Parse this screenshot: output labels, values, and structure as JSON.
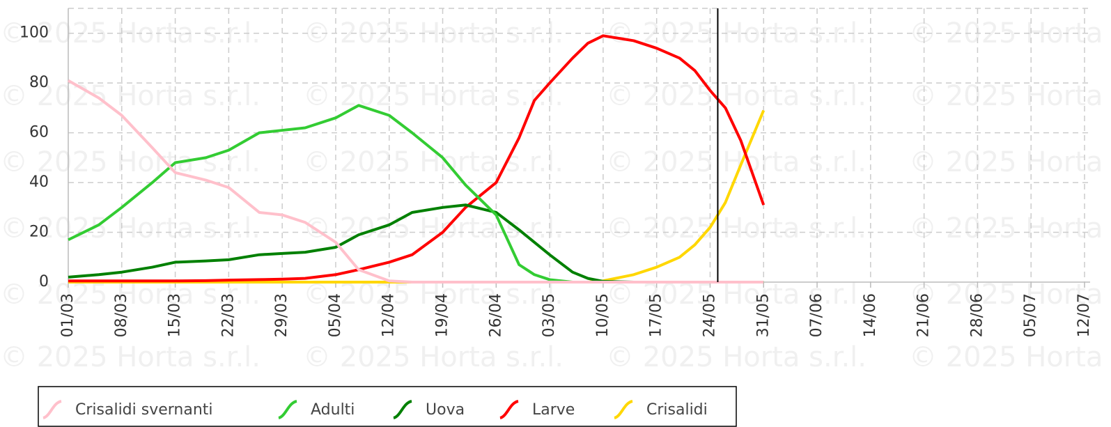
{
  "chart_data": {
    "type": "line",
    "watermark": "© 2025 Horta s.r.l.",
    "x": [
      "01/03",
      "05/03",
      "08/03",
      "12/03",
      "15/03",
      "19/03",
      "22/03",
      "26/03",
      "29/03",
      "01/04",
      "05/04",
      "08/04",
      "12/04",
      "15/04",
      "19/04",
      "22/04",
      "26/04",
      "29/04",
      "01/05",
      "03/05",
      "06/05",
      "08/05",
      "10/05",
      "14/05",
      "17/05",
      "20/05",
      "22/05",
      "24/05",
      "26/05",
      "28/05",
      "31/05"
    ],
    "series": [
      {
        "name": "Crisalidi svernanti",
        "color": "#ffc0cb",
        "values": [
          81,
          74,
          67,
          54,
          44,
          41,
          38,
          28,
          27,
          24,
          16,
          5,
          0.5,
          0,
          0,
          0,
          0,
          0,
          0,
          0,
          0,
          0,
          0,
          0,
          0,
          0,
          0,
          0,
          0,
          0,
          0
        ]
      },
      {
        "name": "Adulti",
        "color": "#33cc33",
        "values": [
          17,
          23,
          30,
          40,
          48,
          50,
          53,
          60,
          61,
          62,
          66,
          71,
          67,
          60,
          50,
          39,
          27,
          7,
          3,
          1,
          0,
          0,
          0,
          0,
          0,
          0,
          0,
          0,
          0,
          0,
          0
        ]
      },
      {
        "name": "Uova",
        "color": "#008000",
        "values": [
          2,
          3,
          4,
          6,
          8,
          8.5,
          9,
          11,
          11.5,
          12,
          14,
          19,
          23,
          28,
          30,
          31,
          28,
          21,
          16,
          11,
          4,
          1.5,
          0.3,
          0,
          0,
          0,
          0,
          0,
          0,
          0,
          0
        ]
      },
      {
        "name": "Larve",
        "color": "#ff0000",
        "values": [
          0.5,
          0.5,
          0.5,
          0.5,
          0.5,
          0.6,
          0.8,
          1,
          1.2,
          1.5,
          3,
          5,
          8,
          11,
          20,
          30,
          40,
          58,
          73,
          80,
          90,
          96,
          99,
          97,
          94,
          90,
          85,
          77,
          70,
          57,
          31
        ]
      },
      {
        "name": "Crisalidi",
        "color": "#ffd700",
        "values": [
          0,
          0,
          0,
          0,
          0,
          0,
          0,
          0,
          0,
          0,
          0,
          0,
          0,
          0,
          0,
          0,
          0,
          0,
          0,
          0,
          0,
          0,
          0.5,
          3,
          6,
          10,
          15,
          22,
          32,
          47,
          69
        ]
      }
    ],
    "xlim": [
      "01/03",
      "12/07"
    ],
    "xticks": [
      "01/03",
      "08/03",
      "15/03",
      "22/03",
      "29/03",
      "05/04",
      "12/04",
      "19/04",
      "26/04",
      "03/05",
      "10/05",
      "17/05",
      "24/05",
      "31/05",
      "07/06",
      "14/06",
      "21/06",
      "28/06",
      "05/07",
      "12/07"
    ],
    "ylim": [
      0,
      110
    ],
    "yticks": [
      0,
      20,
      40,
      60,
      80,
      100
    ],
    "grid": true,
    "vline": "25/05",
    "legend": "bottom-left"
  }
}
